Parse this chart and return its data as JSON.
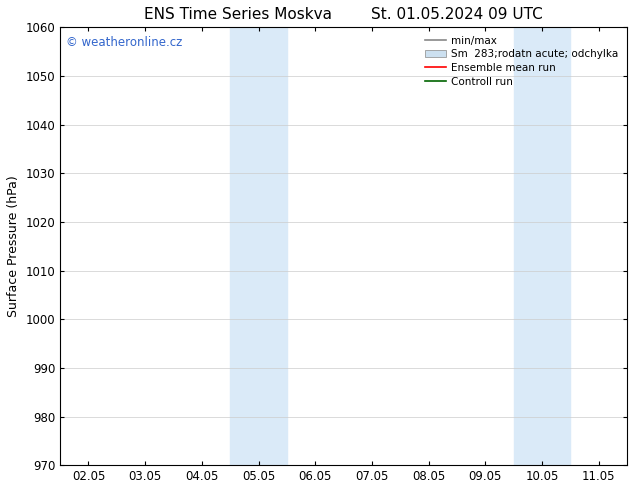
{
  "title_left": "ENS Time Series Moskva",
  "title_right": "St. 01.05.2024 09 UTC",
  "ylabel": "Surface Pressure (hPa)",
  "ylim": [
    970,
    1060
  ],
  "yticks": [
    970,
    980,
    990,
    1000,
    1010,
    1020,
    1030,
    1040,
    1050,
    1060
  ],
  "xtick_labels": [
    "02.05",
    "03.05",
    "04.05",
    "05.05",
    "06.05",
    "07.05",
    "08.05",
    "09.05",
    "10.05",
    "11.05"
  ],
  "xtick_positions": [
    0,
    1,
    2,
    3,
    4,
    5,
    6,
    7,
    8,
    9
  ],
  "xlim": [
    -0.5,
    9.5
  ],
  "blue_bands": [
    {
      "x_start": 2.5,
      "x_end": 3.5
    },
    {
      "x_start": 7.5,
      "x_end": 8.5
    }
  ],
  "watermark": "© weatheronline.cz",
  "watermark_color": "#3366cc",
  "band_color": "#daeaf8",
  "bg_color": "#ffffff",
  "grid_color": "#cccccc",
  "title_fontsize": 11,
  "label_fontsize": 9,
  "tick_fontsize": 8.5
}
